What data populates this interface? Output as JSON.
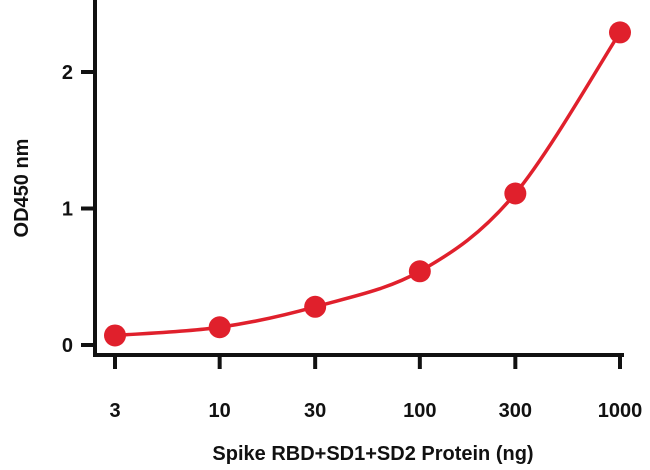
{
  "chart_data": {
    "type": "line",
    "title": "",
    "xlabel": "Spike RBD+SD1+SD2 Protein (ng)",
    "ylabel": "OD450 nm",
    "x_scale": "log",
    "categories": [
      "3",
      "10",
      "30",
      "100",
      "300",
      "1000"
    ],
    "series": [
      {
        "color": "#e0202c",
        "x": [
          3,
          10,
          30,
          100,
          300,
          1000
        ],
        "values": [
          0.07,
          0.13,
          0.28,
          0.54,
          1.11,
          2.29
        ]
      }
    ],
    "y_ticks": [
      "0",
      "1",
      "2"
    ],
    "ylim": [
      0,
      2.5
    ],
    "grid": false,
    "legend": "none"
  }
}
